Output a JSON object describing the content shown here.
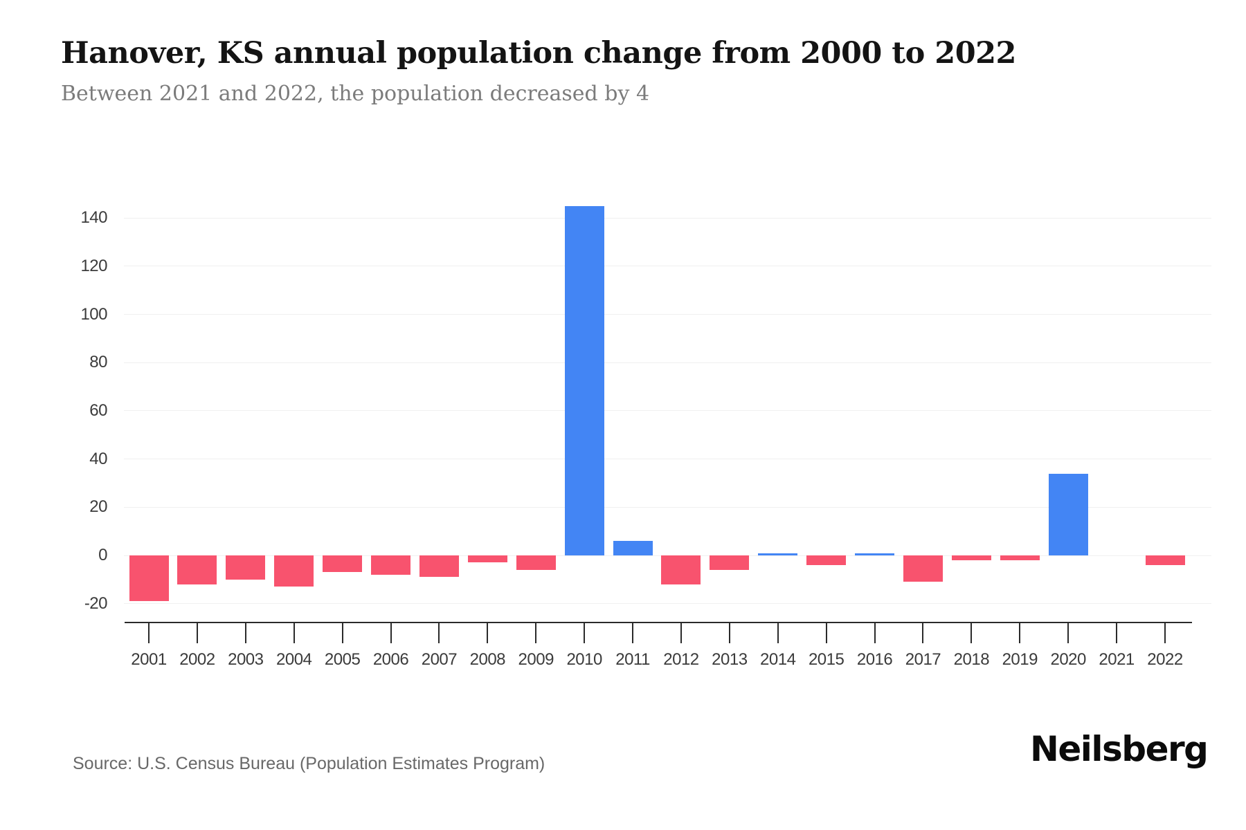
{
  "header": {
    "title": "Hanover, KS annual population change from 2000 to 2022",
    "subtitle": "Between 2021 and 2022, the population decreased by 4"
  },
  "footer": {
    "source": "Source: U.S. Census Bureau (Population Estimates Program)",
    "brand": "Neilsberg"
  },
  "chart_data": {
    "type": "bar",
    "title": "Hanover, KS annual population change from 2000 to 2022",
    "subtitle": "Between 2021 and 2022, the population decreased by 4",
    "categories": [
      "2001",
      "2002",
      "2003",
      "2004",
      "2005",
      "2006",
      "2007",
      "2008",
      "2009",
      "2010",
      "2011",
      "2012",
      "2013",
      "2014",
      "2015",
      "2016",
      "2017",
      "2018",
      "2019",
      "2020",
      "2021",
      "2022"
    ],
    "values": [
      -19,
      -12,
      -10,
      -13,
      -7,
      -8,
      -9,
      -3,
      -6,
      145,
      6,
      -12,
      -6,
      1,
      -4,
      1,
      -11,
      -2,
      -2,
      34,
      0,
      -4
    ],
    "xlabel": "",
    "ylabel": "",
    "y_ticks": [
      "140",
      "120",
      "100",
      "80",
      "60",
      "40",
      "20",
      "0",
      "-20"
    ],
    "ylim": [
      -20,
      145
    ],
    "grid": "horizontal",
    "legend": "none",
    "colors": {
      "positive": "#4385f4",
      "negative": "#f8536e",
      "gridline": "#f0f0f0",
      "axis": "#2a2a2a",
      "tick_label": "#3b3b3b"
    }
  }
}
